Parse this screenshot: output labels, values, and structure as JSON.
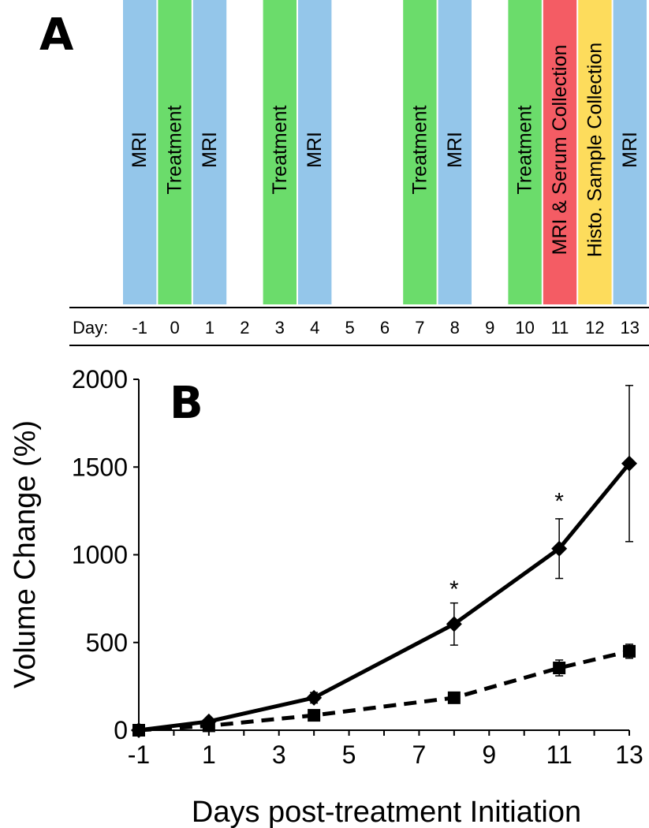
{
  "panel_a": {
    "label": "A",
    "day_prefix": "Day:",
    "days": [
      "-1",
      "0",
      "1",
      "2",
      "3",
      "4",
      "5",
      "6",
      "7",
      "8",
      "9",
      "10",
      "11",
      "12",
      "13"
    ],
    "colors": {
      "MRI": "#94c6ea",
      "Treatment": "#6bdc6b",
      "MRI & Serum Collection": "#f45c64",
      "Histo. Sample Collection": "#fddc5c"
    },
    "events": [
      {
        "day": -1,
        "label": "MRI"
      },
      {
        "day": 0,
        "label": "Treatment"
      },
      {
        "day": 1,
        "label": "MRI"
      },
      {
        "day": 3,
        "label": "Treatment"
      },
      {
        "day": 4,
        "label": "MRI"
      },
      {
        "day": 7,
        "label": "Treatment"
      },
      {
        "day": 8,
        "label": "MRI"
      },
      {
        "day": 10,
        "label": "Treatment"
      },
      {
        "day": 11,
        "label": "MRI & Serum Collection"
      },
      {
        "day": 12,
        "label": "Histo. Sample Collection"
      },
      {
        "day": 13,
        "label": "MRI"
      }
    ]
  },
  "chart_data": {
    "type": "line",
    "panel_label": "B",
    "xlabel": "Days post-treatment Initiation",
    "ylabel": "Volume Change (%)",
    "xlim": [
      -1,
      13
    ],
    "ylim": [
      0,
      2000
    ],
    "xticks": [
      -1,
      1,
      3,
      5,
      7,
      9,
      11,
      13
    ],
    "yticks": [
      0,
      500,
      1000,
      1500,
      2000
    ],
    "grid": false,
    "legend": "none",
    "series": [
      {
        "marker": "diamond",
        "line": "solid",
        "x": [
          -1,
          1,
          4,
          8,
          11,
          13
        ],
        "y": [
          0,
          50,
          185,
          605,
          1035,
          1520
        ],
        "error": [
          0,
          15,
          30,
          120,
          170,
          445
        ]
      },
      {
        "marker": "square",
        "line": "dashed",
        "x": [
          -1,
          1,
          4,
          8,
          11,
          13
        ],
        "y": [
          0,
          25,
          85,
          185,
          355,
          450
        ],
        "error": [
          0,
          8,
          15,
          20,
          45,
          40
        ]
      }
    ],
    "annotations": [
      {
        "x": 8,
        "y": 760,
        "text": "*"
      },
      {
        "x": 11,
        "y": 1260,
        "text": "*"
      }
    ]
  }
}
